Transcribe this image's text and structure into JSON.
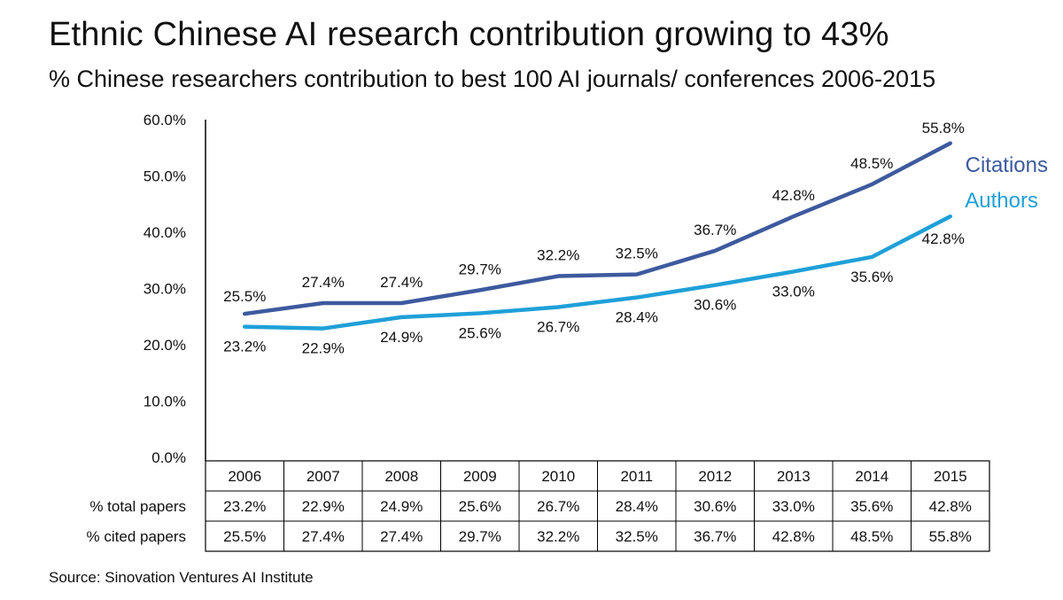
{
  "title": "Ethnic Chinese AI research contribution growing to 43%",
  "subtitle": "% Chinese researchers contribution to best 100 AI journals/ conferences 2006-2015",
  "source": "Source: Sinovation Ventures AI Institute",
  "colors": {
    "citations": "#3d5a9e",
    "authors": "#1fa0d8",
    "axis": "#000000"
  },
  "chart_data": {
    "type": "line",
    "title": "Ethnic Chinese AI research contribution growing to 43%",
    "subtitle": "% Chinese researchers contribution to best 100 AI journals/ conferences 2006-2015",
    "x": [
      "2006",
      "2007",
      "2008",
      "2009",
      "2010",
      "2011",
      "2012",
      "2013",
      "2014",
      "2015"
    ],
    "yticks": [
      "0.0%",
      "10.0%",
      "20.0%",
      "30.0%",
      "40.0%",
      "50.0%",
      "60.0%"
    ],
    "ylim": [
      0,
      60
    ],
    "grid": false,
    "legend": "direct labels at right end of lines",
    "series": [
      {
        "name": "Citations",
        "values": [
          25.5,
          27.4,
          27.4,
          29.7,
          32.2,
          32.5,
          36.7,
          42.8,
          48.5,
          55.8
        ],
        "labels": [
          "25.5%",
          "27.4%",
          "27.4%",
          "29.7%",
          "32.2%",
          "32.5%",
          "36.7%",
          "42.8%",
          "48.5%",
          "55.8%"
        ]
      },
      {
        "name": "Authors",
        "values": [
          23.2,
          22.9,
          24.9,
          25.6,
          26.7,
          28.4,
          30.6,
          33.0,
          35.6,
          42.8
        ],
        "labels": [
          "23.2%",
          "22.9%",
          "24.9%",
          "25.6%",
          "26.7%",
          "28.4%",
          "30.6%",
          "33.0%",
          "35.6%",
          "42.8%"
        ]
      }
    ],
    "table": {
      "header": [
        "2006",
        "2007",
        "2008",
        "2009",
        "2010",
        "2011",
        "2012",
        "2013",
        "2014",
        "2015"
      ],
      "rows": [
        {
          "label": "% total papers",
          "cells": [
            "23.2%",
            "22.9%",
            "24.9%",
            "25.6%",
            "26.7%",
            "28.4%",
            "30.6%",
            "33.0%",
            "35.6%",
            "42.8%"
          ]
        },
        {
          "label": "% cited papers",
          "cells": [
            "25.5%",
            "27.4%",
            "27.4%",
            "29.7%",
            "32.2%",
            "32.5%",
            "36.7%",
            "42.8%",
            "48.5%",
            "55.8%"
          ]
        }
      ]
    }
  }
}
